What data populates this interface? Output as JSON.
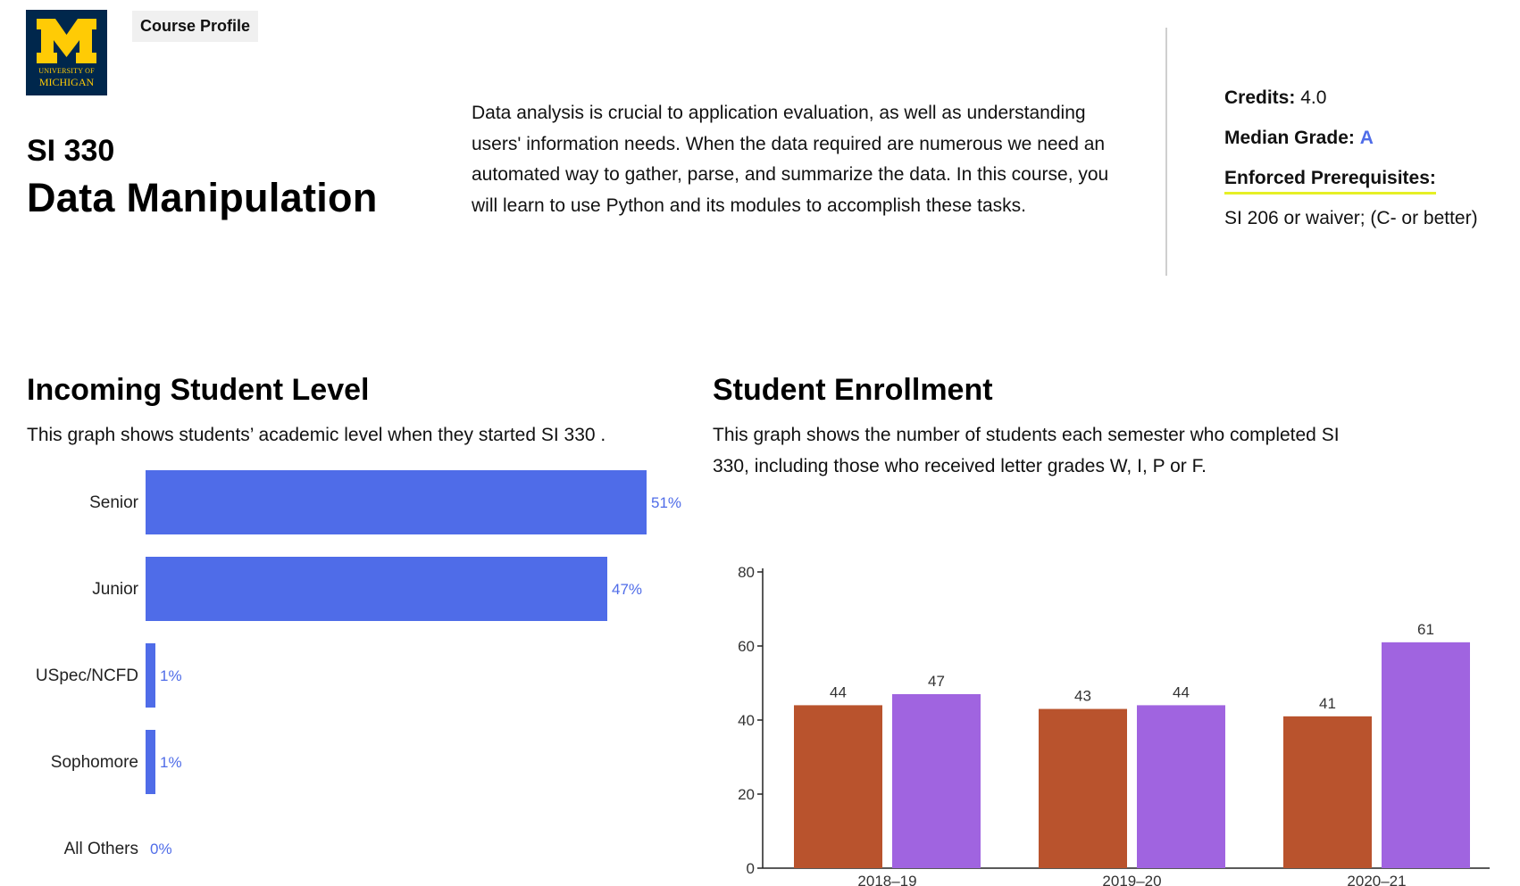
{
  "header": {
    "logo_top_text": "UNIVERSITY OF",
    "logo_bottom_text": "MICHIGAN",
    "profile_tag": "Course Profile",
    "course_code": "SI 330",
    "course_name": "Data Manipulation",
    "description": "Data analysis is crucial to application evaluation, as well as understanding users' information needs. When the data required are numerous we need an automated way to gather, parse, and summarize the data. In this course, you will learn to use Python and its modules to accomplish these tasks."
  },
  "facts": {
    "credits_label": "Credits:",
    "credits_value": "4.0",
    "median_grade_label": "Median Grade:",
    "median_grade_value": "A",
    "prereq_label": "Enforced Prerequisites:",
    "prereq_value": "SI 206 or waiver; (C- or better)"
  },
  "level_section": {
    "title": "Incoming Student Level",
    "description": "This graph shows students’ academic level when they started SI 330 ."
  },
  "enroll_section": {
    "title": "Student Enrollment",
    "description": "This graph shows the number of students each semester who completed SI 330, including those who received letter grades W, I, P or F."
  },
  "colors": {
    "level_bar": "#4f6ce8",
    "enroll_series_1": "#b9532d",
    "enroll_series_2": "#a064e0",
    "logo_bg": "#00274c",
    "logo_fg": "#ffcb05"
  },
  "chart_data": [
    {
      "type": "bar",
      "orientation": "horizontal",
      "categories": [
        "Senior",
        "Junior",
        "USpec/NCFD",
        "Sophomore",
        "All Others"
      ],
      "values": [
        51,
        47,
        1,
        1,
        0
      ],
      "value_labels": [
        "51%",
        "47%",
        "1%",
        "1%",
        "0%"
      ],
      "unit": "%"
    },
    {
      "type": "bar",
      "categories": [
        "2018–19",
        "2019–20",
        "2020–21"
      ],
      "series": [
        {
          "values": [
            44,
            43,
            41
          ]
        },
        {
          "values": [
            47,
            44,
            61
          ]
        }
      ],
      "ylim": [
        0,
        80
      ],
      "yticks": [
        0,
        20,
        40,
        60,
        80
      ],
      "grid": false
    }
  ]
}
